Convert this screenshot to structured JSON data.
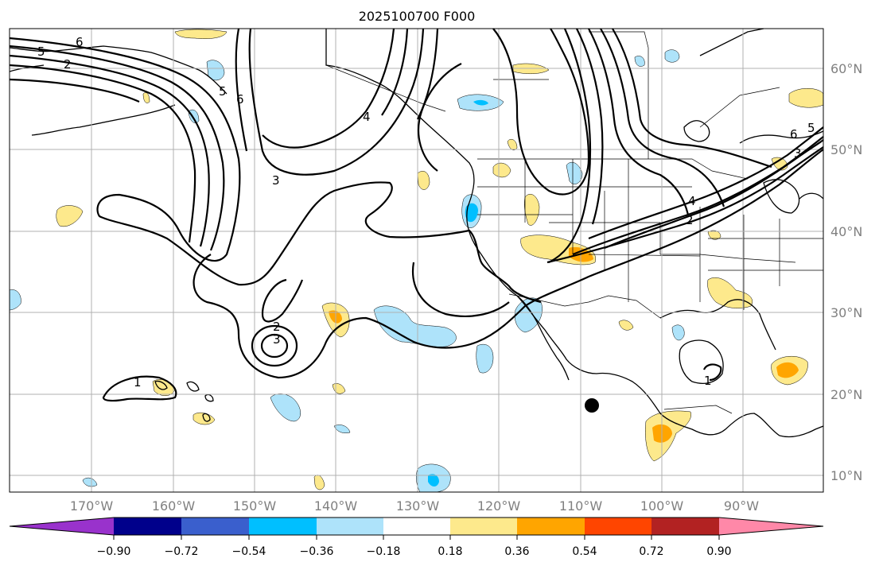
{
  "title": "2025100700 F000",
  "map": {
    "lat_labels": [
      "60°N",
      "50°N",
      "40°N",
      "30°N",
      "20°N",
      "10°N"
    ],
    "lon_labels": [
      "170°W",
      "160°W",
      "150°W",
      "140°W",
      "130°W",
      "120°W",
      "110°W",
      "100°W",
      "90°W"
    ],
    "contour_labels": [
      "5",
      "6",
      "2",
      "6",
      "5",
      "4",
      "3",
      "2",
      "3",
      "1",
      "6",
      "5",
      "3",
      "4",
      "2",
      "1"
    ],
    "marker": "storm-center-dot"
  },
  "colorbar": {
    "tick_labels": [
      "−0.90",
      "−0.72",
      "−0.54",
      "−0.36",
      "−0.18",
      "0.18",
      "0.36",
      "0.54",
      "0.72",
      "0.90"
    ],
    "colors": [
      "#9932cc",
      "#00008b",
      "#3a5fcd",
      "#00bfff",
      "#aee3fa",
      "#ffffff",
      "#fde98c",
      "#ffa500",
      "#ff4500",
      "#b22222",
      "#ff88a8"
    ]
  }
}
